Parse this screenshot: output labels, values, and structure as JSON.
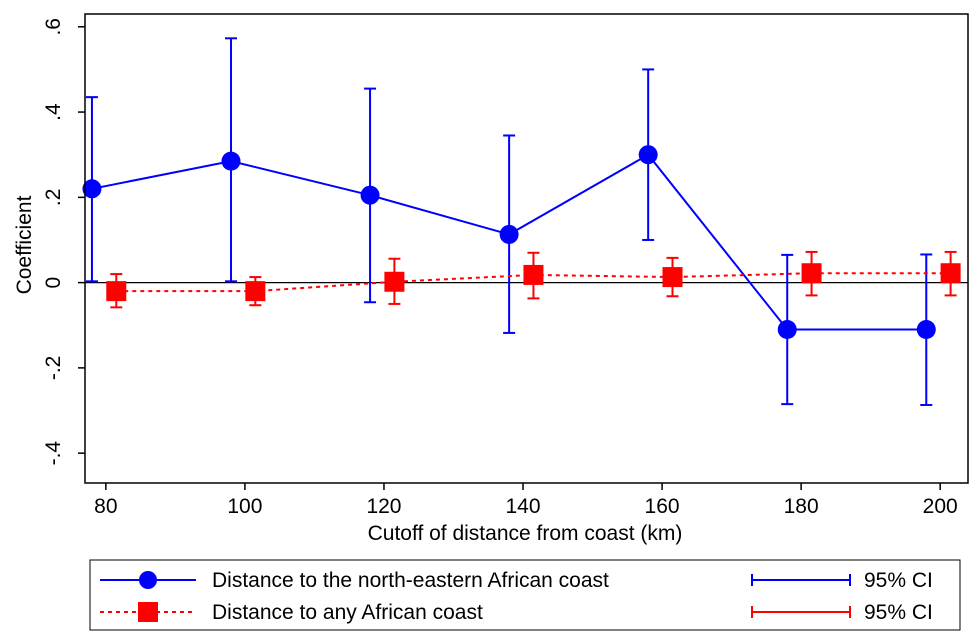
{
  "chart_data": {
    "type": "line",
    "xlabel": "Cutoff of distance from coast (km)",
    "ylabel": "Coefficient",
    "xlim": [
      77,
      204
    ],
    "ylim": [
      -0.47,
      0.63
    ],
    "xticks": [
      80,
      100,
      120,
      140,
      160,
      180,
      200
    ],
    "xtick_labels": [
      "80",
      "100",
      "120",
      "140",
      "160",
      "180",
      "200"
    ],
    "yticks": [
      -0.4,
      -0.2,
      0,
      0.2,
      0.4,
      0.6
    ],
    "ytick_labels": [
      "-.4",
      "-.2",
      "0",
      ".2",
      ".4",
      ".6"
    ],
    "reference_line_y": 0,
    "grid": false,
    "legend_position": "bottom",
    "series": [
      {
        "name": "Distance to the north-eastern African coast",
        "ci_label": "95% CI",
        "color": "#0000ff",
        "marker": "circle",
        "line_style": "solid",
        "x": [
          78,
          98,
          118,
          138,
          158,
          178,
          198
        ],
        "y": [
          0.22,
          0.285,
          0.205,
          0.113,
          0.3,
          -0.11,
          -0.11
        ],
        "ci_low": [
          0.003,
          0.003,
          -0.046,
          -0.118,
          0.1,
          -0.285,
          -0.287
        ],
        "ci_high": [
          0.435,
          0.573,
          0.455,
          0.345,
          0.5,
          0.065,
          0.066
        ]
      },
      {
        "name": "Distance to any African coast",
        "ci_label": "95% CI",
        "color": "#ff0000",
        "marker": "square",
        "line_style": "dotted",
        "x": [
          81.5,
          101.5,
          121.5,
          141.5,
          161.5,
          181.5,
          201.5
        ],
        "y": [
          -0.02,
          -0.02,
          0.002,
          0.018,
          0.013,
          0.022,
          0.022
        ],
        "ci_low": [
          -0.058,
          -0.053,
          -0.05,
          -0.037,
          -0.032,
          -0.03,
          -0.03
        ],
        "ci_high": [
          0.02,
          0.013,
          0.056,
          0.07,
          0.058,
          0.072,
          0.072
        ]
      }
    ]
  }
}
